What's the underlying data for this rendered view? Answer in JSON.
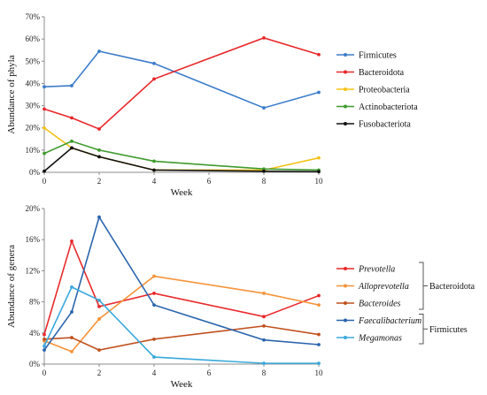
{
  "chart_data": [
    {
      "type": "line",
      "xlabel": "Week",
      "ylabel": "Abundance of phyla",
      "x": [
        0,
        1,
        2,
        4,
        8,
        10
      ],
      "xticks": [
        "0",
        "2",
        "4",
        "6",
        "8",
        "10"
      ],
      "xlim": [
        0,
        10
      ],
      "ylim": [
        0,
        70
      ],
      "yticks": [
        "0%",
        "10%",
        "20%",
        "30%",
        "40%",
        "50%",
        "60%",
        "70%"
      ],
      "grid": false,
      "legend_position": "right",
      "series": [
        {
          "name": "Firmicutes",
          "color": "#3d7cc9",
          "values": [
            38.5,
            39,
            54.5,
            49,
            29,
            36
          ]
        },
        {
          "name": "Bacteroidota",
          "color": "#e8282b",
          "values": [
            28.5,
            24.5,
            19.5,
            42,
            60.5,
            53
          ]
        },
        {
          "name": "Proteobacteria",
          "color": "#f5c218",
          "values": [
            20,
            11,
            7,
            1,
            1,
            6.5
          ]
        },
        {
          "name": "Actinobacteriota",
          "color": "#3f9a2e",
          "values": [
            8.5,
            14,
            10,
            5,
            1.5,
            1
          ]
        },
        {
          "name": "Fusobacteriota",
          "color": "#111111",
          "values": [
            0.5,
            11,
            7,
            1,
            0.5,
            0.3
          ]
        }
      ]
    },
    {
      "type": "line",
      "xlabel": "Week",
      "ylabel": "Abundance of genera",
      "x": [
        0,
        1,
        2,
        4,
        8,
        10
      ],
      "xticks": [
        "0",
        "2",
        "4",
        "6",
        "8",
        "10"
      ],
      "xlim": [
        0,
        10
      ],
      "ylim": [
        0,
        20
      ],
      "yticks": [
        "0%",
        "4%",
        "8%",
        "12%",
        "16%",
        "20%"
      ],
      "grid": false,
      "legend_position": "right",
      "series": [
        {
          "name": "Prevotella",
          "color": "#e8282b",
          "values": [
            3.8,
            15.8,
            7.4,
            9.1,
            6.1,
            8.8
          ],
          "group": "Bacteroidota"
        },
        {
          "name": "Alloprevotella",
          "color": "#f5933a",
          "values": [
            3.0,
            1.6,
            5.8,
            11.3,
            9.1,
            7.6
          ],
          "group": "Bacteroidota"
        },
        {
          "name": "Bacteroides",
          "color": "#c0501e",
          "values": [
            3.2,
            3.4,
            1.8,
            3.2,
            4.9,
            3.8
          ],
          "group": "Bacteroidota"
        },
        {
          "name": "Faecalibacterium",
          "color": "#2a64ad",
          "values": [
            1.8,
            6.7,
            18.9,
            7.6,
            3.1,
            2.5
          ],
          "group": "Firmicutes"
        },
        {
          "name": "Megamonas",
          "color": "#3aa9dc",
          "values": [
            2.3,
            9.9,
            8.2,
            0.9,
            0.1,
            0.1
          ],
          "group": "Firmicutes"
        }
      ],
      "groups": [
        {
          "label": "Bacteroidota"
        },
        {
          "label": "Firmicutes"
        }
      ]
    }
  ]
}
